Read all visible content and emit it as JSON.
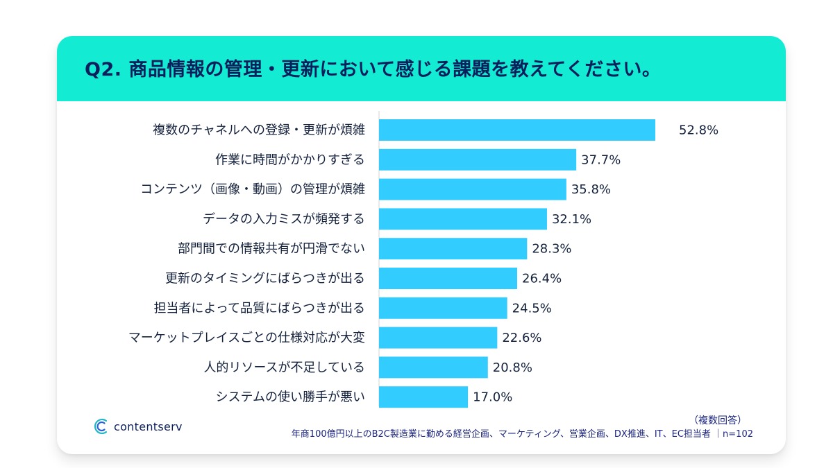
{
  "title": "Q2. 商品情報の管理・更新において感じる課題を教えてください。",
  "accent_color": "#13ecd3",
  "bar_color": "#33ccff",
  "chart_data": {
    "type": "bar",
    "orientation": "horizontal",
    "categories": [
      "複数のチャネルへの登録・更新が煩雑",
      "作業に時間がかかりすぎる",
      "コンテンツ（画像・動画）の管理が煩雑",
      "データの入力ミスが頻発する",
      "部門間での情報共有が円滑でない",
      "更新のタイミングにばらつきが出る",
      "担当者によって品質にばらつきが出る",
      "マーケットプレイスごとの仕様対応が大変",
      "人的リソースが不足している",
      "システムの使い勝手が悪い"
    ],
    "values": [
      52.8,
      37.7,
      35.8,
      32.1,
      28.3,
      26.4,
      24.5,
      22.6,
      20.8,
      17.0
    ],
    "value_labels": [
      "52.8%",
      "37.7%",
      "35.8%",
      "32.1%",
      "28.3%",
      "26.4%",
      "24.5%",
      "22.6%",
      "20.8%",
      "17.0%"
    ],
    "grid": false
  },
  "footnote": {
    "multiple": "（複数回答）",
    "sample": "年商100億円以上のB2C製造業に勤める経営企画、マーケティング、営業企画、DX推進、IT、EC担当者 ｜n=102"
  },
  "logo": {
    "text": "contentserv",
    "icon": "contentserv-logo-icon"
  }
}
